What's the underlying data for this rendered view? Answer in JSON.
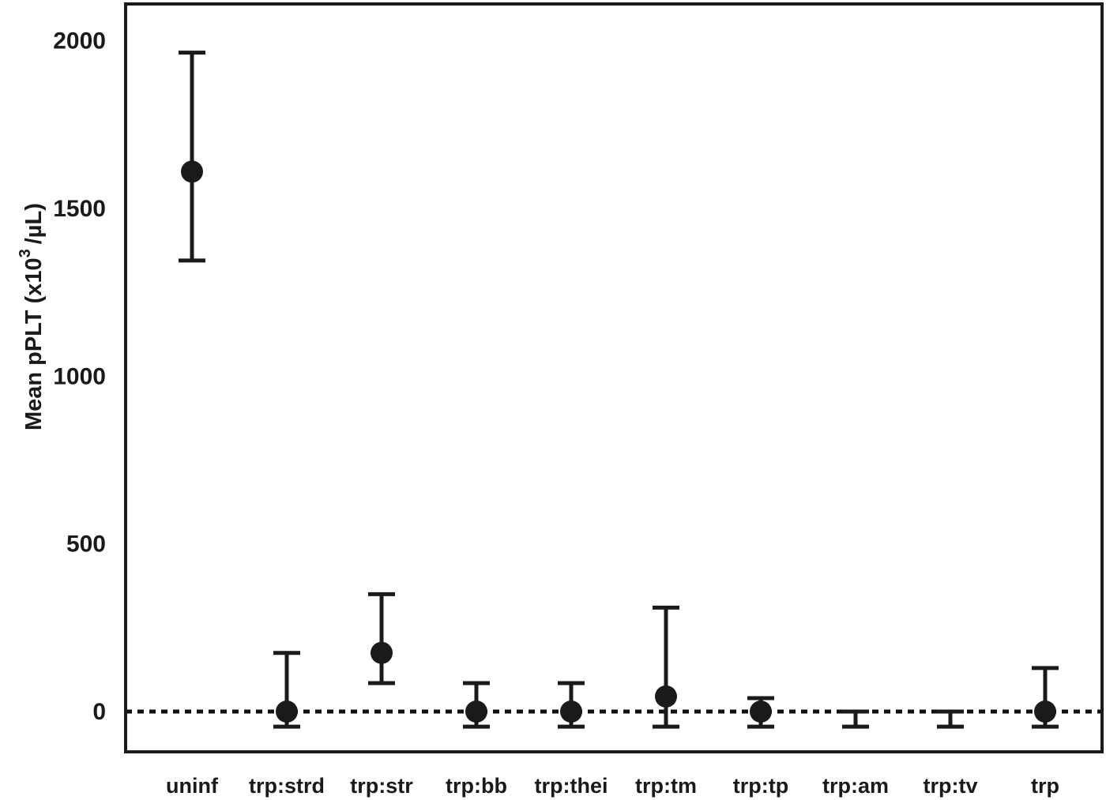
{
  "chart_data": {
    "type": "scatter",
    "ylabel_main": "Mean pPLT (x10",
    "ylabel_sup": "3",
    "ylabel_tail": "/µL)",
    "categories": [
      "uninf",
      "trp:strd",
      "trp:str",
      "trp:bb",
      "trp:thei",
      "trp:tm",
      "trp:tp",
      "trp:am",
      "trp:tv",
      "trp"
    ],
    "means": [
      1610,
      0,
      175,
      0,
      0,
      45,
      0,
      null,
      null,
      0
    ],
    "upper": [
      1965,
      175,
      350,
      85,
      85,
      310,
      40,
      0,
      0,
      130
    ],
    "lower": [
      1345,
      -45,
      85,
      -45,
      -45,
      -45,
      -45,
      -45,
      -45,
      -45
    ],
    "yticks": [
      0,
      500,
      1000,
      1500,
      2000
    ],
    "ylim": [
      -120,
      2110
    ],
    "reference_line": 0,
    "grid": false,
    "legend": "none"
  }
}
